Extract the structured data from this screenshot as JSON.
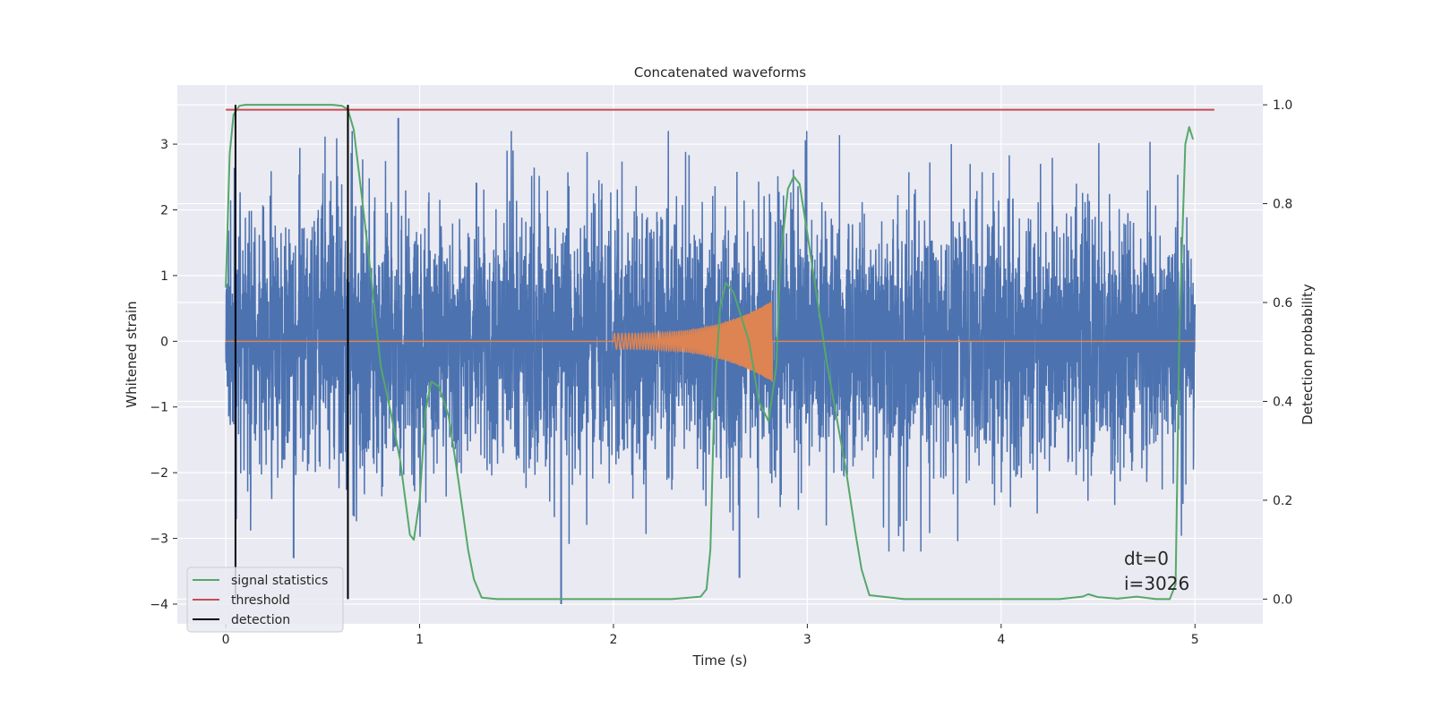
{
  "chart_data": {
    "type": "line",
    "title": "Concatenated waveforms",
    "xlabel": "Time (s)",
    "ylabel": "Whitened strain",
    "ylabel_right": "Detection probability",
    "xlim": [
      -0.25,
      5.35
    ],
    "ylim": [
      -4.3,
      3.9
    ],
    "ylim_right": [
      -0.05,
      1.04
    ],
    "x_ticks": [
      0,
      1,
      2,
      3,
      4,
      5
    ],
    "x_tick_labels": [
      "0",
      "1",
      "2",
      "3",
      "4",
      "5"
    ],
    "y_ticks": [
      -4,
      -3,
      -2,
      -1,
      0,
      1,
      2,
      3
    ],
    "y_tick_labels": [
      "−4",
      "−3",
      "−2",
      "−1",
      "0",
      "1",
      "2",
      "3"
    ],
    "y2_ticks": [
      0.0,
      0.2,
      0.4,
      0.6,
      0.8,
      1.0
    ],
    "y2_tick_labels": [
      "0.0",
      "0.2",
      "0.4",
      "0.6",
      "0.8",
      "1.0"
    ],
    "grid": true,
    "legend_position": "lower-left",
    "colors": {
      "strain": "#4c72b0",
      "injection": "#dd8452",
      "signal_statistics": "#55a868",
      "threshold": "#c44e52",
      "detection": "#000000",
      "axes_bg": "#eaeaf2",
      "grid": "#ffffff"
    },
    "strain": {
      "x_range": [
        0,
        5
      ],
      "noise_std": 1.0,
      "notable_extremes": [
        {
          "x": 0.89,
          "y": 3.4
        },
        {
          "x": 1.73,
          "y": -4.0
        },
        {
          "x": 0.35,
          "y": -3.3
        },
        {
          "x": 2.65,
          "y": -3.6
        }
      ]
    },
    "injection": {
      "start": 2.0,
      "end": 2.82,
      "amplitude_start": 0.12,
      "amplitude_peak": 0.62
    },
    "series": [
      {
        "name": "signal statistics",
        "axis": "right",
        "x": [
          0.0,
          0.02,
          0.04,
          0.07,
          0.1,
          0.2,
          0.4,
          0.55,
          0.6,
          0.63,
          0.66,
          0.7,
          0.75,
          0.8,
          0.85,
          0.9,
          0.95,
          0.97,
          1.0,
          1.03,
          1.06,
          1.1,
          1.15,
          1.2,
          1.25,
          1.28,
          1.32,
          1.4,
          1.6,
          2.0,
          2.3,
          2.45,
          2.48,
          2.5,
          2.52,
          2.55,
          2.58,
          2.62,
          2.7,
          2.75,
          2.8,
          2.84,
          2.86,
          2.9,
          2.93,
          2.96,
          3.0,
          3.05,
          3.1,
          3.15,
          3.2,
          3.25,
          3.28,
          3.32,
          3.5,
          4.3,
          4.42,
          4.45,
          4.5,
          4.6,
          4.7,
          4.8,
          4.87,
          4.9,
          4.92,
          4.95,
          4.97,
          4.99
        ],
        "y": [
          0.63,
          0.9,
          0.98,
          0.998,
          1.0,
          1.0,
          1.0,
          1.0,
          0.998,
          0.99,
          0.95,
          0.82,
          0.65,
          0.47,
          0.38,
          0.28,
          0.13,
          0.12,
          0.2,
          0.38,
          0.44,
          0.43,
          0.37,
          0.24,
          0.1,
          0.04,
          0.003,
          0.0,
          0.0,
          0.0,
          0.0,
          0.005,
          0.02,
          0.1,
          0.4,
          0.59,
          0.64,
          0.62,
          0.52,
          0.4,
          0.36,
          0.47,
          0.68,
          0.83,
          0.855,
          0.84,
          0.74,
          0.61,
          0.48,
          0.37,
          0.26,
          0.13,
          0.06,
          0.008,
          0.0,
          0.0,
          0.005,
          0.01,
          0.004,
          0.001,
          0.005,
          0.0,
          0.0,
          0.03,
          0.55,
          0.92,
          0.955,
          0.93
        ]
      },
      {
        "name": "threshold",
        "axis": "right",
        "x": [
          0.0,
          5.1
        ],
        "y": [
          0.99,
          0.99
        ]
      },
      {
        "name": "detection",
        "axis": "right",
        "type": "vlines",
        "x": [
          0.05,
          0.63
        ],
        "y_range": [
          0.0,
          1.0
        ]
      }
    ],
    "legend": [
      "signal statistics",
      "threshold",
      "detection"
    ],
    "annotations": [
      "dt=0",
      "i=3026"
    ]
  }
}
